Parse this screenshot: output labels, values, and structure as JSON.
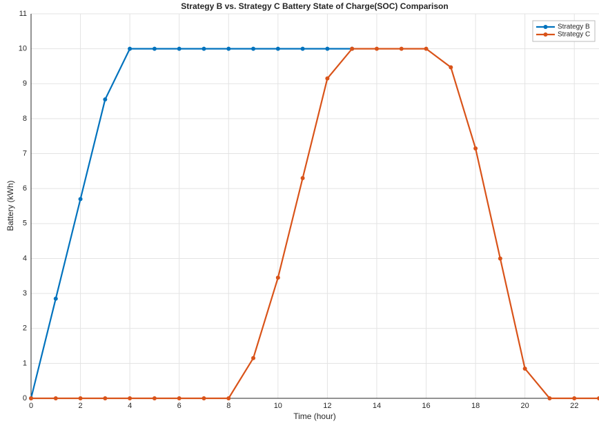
{
  "chart_data": {
    "type": "line",
    "title": "Strategy B vs. Strategy C Battery State of Charge(SOC) Comparison",
    "x_label": "Time (hour)",
    "y_label": "Battery (kWh)",
    "x": [
      0,
      1,
      2,
      3,
      4,
      5,
      6,
      7,
      8,
      9,
      10,
      11,
      12,
      13,
      14,
      15,
      16,
      17,
      18,
      19,
      20,
      21,
      22,
      23
    ],
    "series": [
      {
        "name": "Strategy B",
        "color": "#0072bd",
        "values": [
          0,
          2.85,
          5.7,
          8.55,
          10,
          10,
          10,
          10,
          10,
          10,
          10,
          10,
          10,
          10,
          null,
          null,
          null,
          null,
          null,
          null,
          null,
          null,
          null,
          null
        ]
      },
      {
        "name": "Strategy C",
        "color": "#d95319",
        "values": [
          0,
          0,
          0,
          0,
          0,
          0,
          0,
          0,
          0,
          1.15,
          3.45,
          6.3,
          9.15,
          10,
          10,
          10,
          10,
          9.47,
          7.15,
          4.0,
          0.85,
          0,
          0,
          0
        ]
      }
    ],
    "xlim": [
      0,
      23
    ],
    "xticks": [
      0,
      2,
      4,
      6,
      8,
      10,
      12,
      14,
      16,
      18,
      20,
      22
    ],
    "ylim": [
      0,
      11
    ],
    "yticks": [
      0,
      1,
      2,
      3,
      4,
      5,
      6,
      7,
      8,
      9,
      10,
      11
    ],
    "grid": true,
    "legend": "top-right"
  }
}
